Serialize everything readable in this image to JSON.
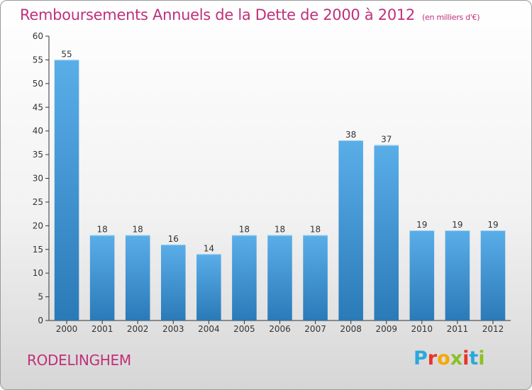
{
  "header": {
    "title": "Remboursements Annuels de la Dette de 2000 à 2012",
    "subtitle": "(en milliers d'€)"
  },
  "footer": {
    "city": "RODELINGHEM",
    "logo_letters": [
      "P",
      "r",
      "o",
      "x",
      "i",
      "t",
      "i"
    ],
    "logo_colors": [
      "#2aa8dc",
      "#e8332a",
      "#f6a800",
      "#8cbf26",
      "#e8332a",
      "#2aa8dc",
      "#8cbf26"
    ]
  },
  "chart_data": {
    "type": "bar",
    "title": "Remboursements Annuels de la Dette de 2000 à 2012",
    "xlabel": "",
    "ylabel": "",
    "categories": [
      "2000",
      "2001",
      "2002",
      "2003",
      "2004",
      "2005",
      "2006",
      "2007",
      "2008",
      "2009",
      "2010",
      "2011",
      "2012"
    ],
    "values": [
      55,
      18,
      18,
      16,
      14,
      18,
      18,
      18,
      38,
      37,
      19,
      19,
      19
    ],
    "value_labels": [
      "55",
      "18",
      "18",
      "16",
      "14",
      "18",
      "18",
      "18",
      "38",
      "37",
      "19",
      "19",
      "19"
    ],
    "ylim": [
      0,
      60
    ],
    "yticks": [
      0,
      5,
      10,
      15,
      20,
      25,
      30,
      35,
      40,
      45,
      50,
      55,
      60
    ],
    "ytick_labels": [
      "0",
      "5",
      "10",
      "15",
      "20",
      "25",
      "30",
      "35",
      "40",
      "45",
      "50",
      "55",
      "60"
    ],
    "grid": false,
    "bar_color_top": "#5aaee8",
    "bar_color_bottom": "#2a7ab8"
  }
}
